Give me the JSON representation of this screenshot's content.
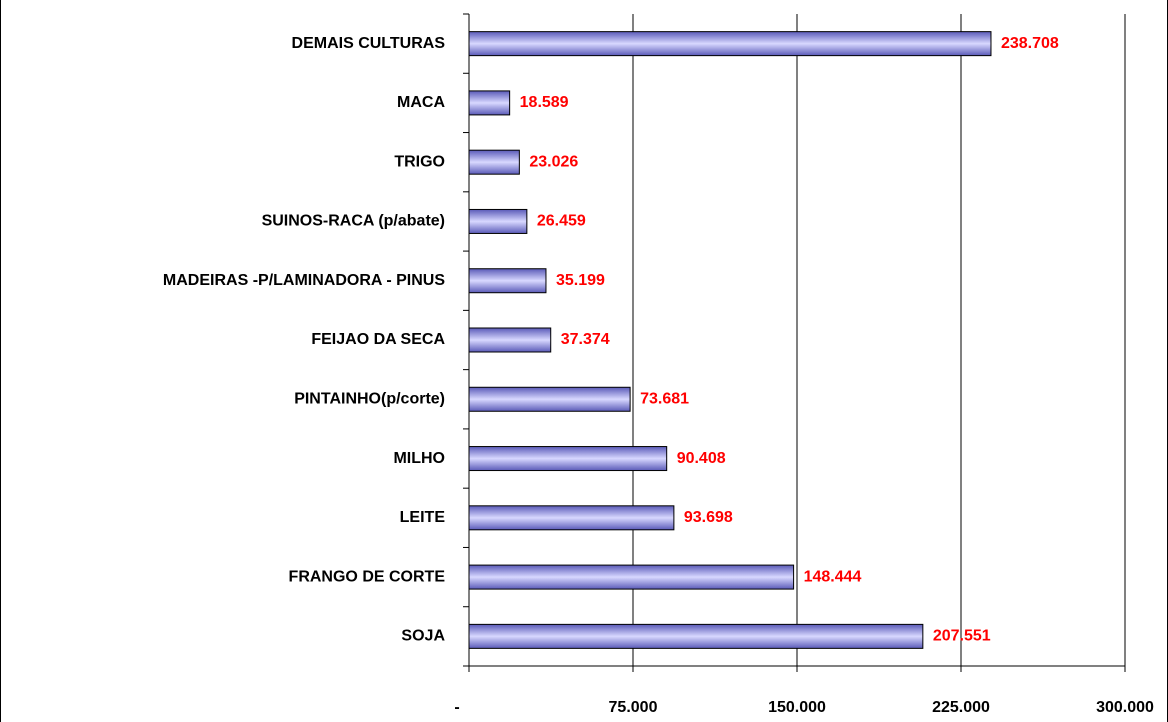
{
  "chart_data": {
    "type": "bar",
    "orientation": "horizontal",
    "categories": [
      "DEMAIS CULTURAS",
      "MACA",
      "TRIGO",
      "SUINOS-RACA  (p/abate)",
      "MADEIRAS -P/LAMINADORA - PINUS",
      "FEIJAO DA SECA",
      "PINTAINHO(p/corte)",
      "MILHO",
      "LEITE",
      "FRANGO DE CORTE",
      "SOJA"
    ],
    "values": [
      238708,
      18589,
      23026,
      26459,
      35199,
      37374,
      73681,
      90408,
      93698,
      148444,
      207551
    ],
    "value_labels": [
      "238.708",
      "18.589",
      "23.026",
      "26.459",
      "35.199",
      "37.374",
      "73.681",
      "90.408",
      "93.698",
      "148.444",
      "207.551"
    ],
    "color": "#9999ff",
    "label_color": "#ff0000",
    "xlim": [
      0,
      300000
    ],
    "xticks": [
      {
        "value": 0,
        "label": "-"
      },
      {
        "value": 75000,
        "label": "75.000"
      },
      {
        "value": 150000,
        "label": "150.000"
      },
      {
        "value": 225000,
        "label": "225.000"
      },
      {
        "value": 300000,
        "label": "300.000"
      }
    ],
    "grid": true
  }
}
